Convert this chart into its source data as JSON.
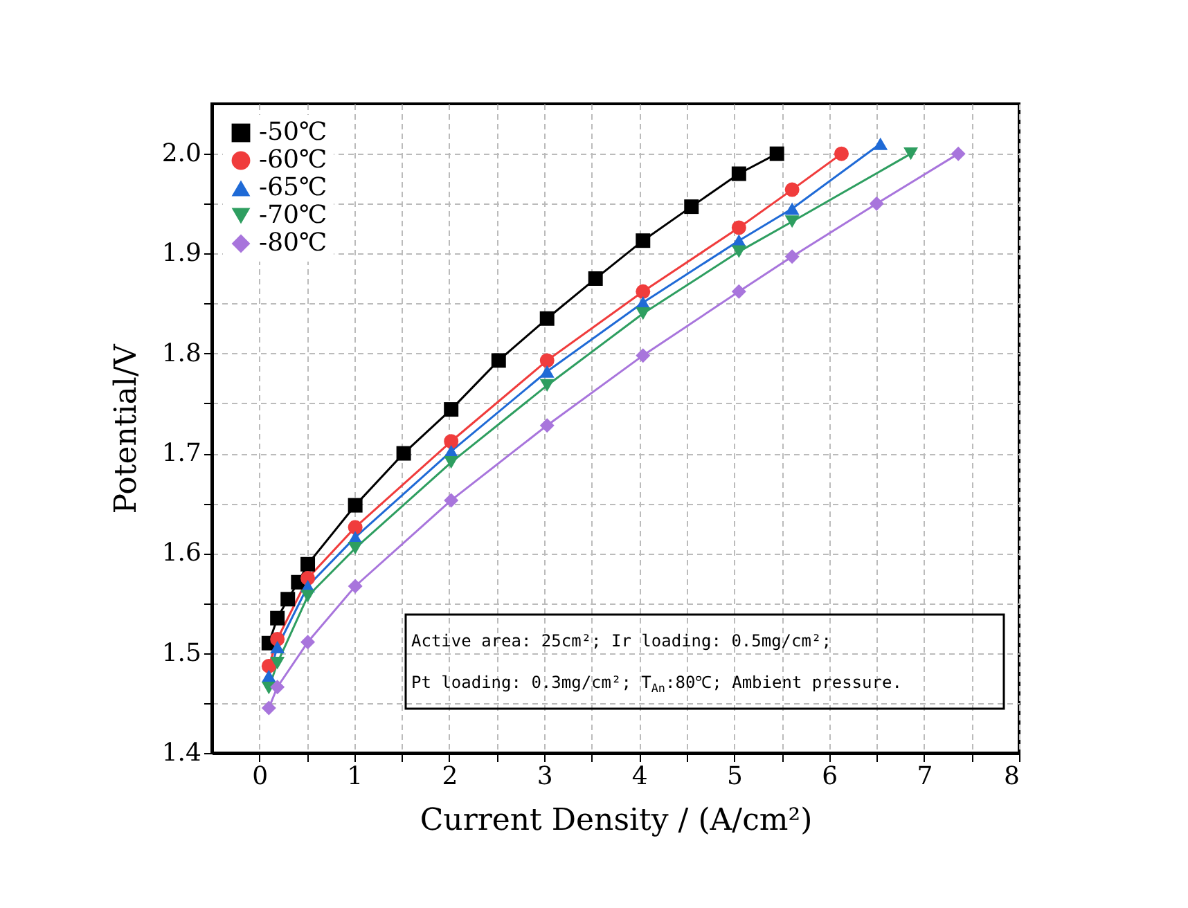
{
  "chart_data": {
    "type": "line",
    "xlabel": "Current Density / (A/cm²)",
    "ylabel": "Potential/V",
    "xlim": [
      -0.5,
      8
    ],
    "ylim": [
      1.4,
      2.05
    ],
    "xticks": [
      0,
      {
        "value": 0.5,
        "label": null
      },
      1,
      {
        "value": 1.5,
        "label": null
      },
      2,
      {
        "value": 2.5,
        "label": null
      },
      3,
      {
        "value": 3.5,
        "label": null
      },
      4,
      {
        "value": 4.5,
        "label": null
      },
      5,
      {
        "value": 5.5,
        "label": null
      },
      6,
      {
        "value": 6.5,
        "label": null
      },
      7,
      {
        "value": 7.5,
        "label": null
      },
      8
    ],
    "yticks": [
      1.4,
      {
        "value": 1.45,
        "label": null
      },
      1.5,
      {
        "value": 1.55,
        "label": null
      },
      1.6,
      {
        "value": 1.65,
        "label": null
      },
      1.7,
      {
        "value": 1.75,
        "label": null
      },
      1.8,
      {
        "value": 1.85,
        "label": null
      },
      1.9,
      {
        "value": 1.95,
        "label": null
      },
      {
        "value": 2.0,
        "label": "2.0"
      }
    ],
    "grid": true,
    "legend": "top left",
    "line_style": "solid",
    "annotations": [
      "Active area: 25cm²; Ir loading: 0.5mg/cm²;",
      "Pt loading: 0.3mg/cm²; T$_{An}$:80℃; Ambient pressure."
    ],
    "series": [
      {
        "name": "-50℃",
        "color": "#000000",
        "marker": "square",
        "x": [
          0.1,
          0.19,
          0.3,
          0.41,
          0.51,
          1.01,
          1.52,
          2.02,
          2.52,
          3.03,
          3.54,
          4.04,
          4.55,
          5.05,
          5.45
        ],
        "values": [
          1.51,
          1.535,
          1.554,
          1.571,
          1.589,
          1.648,
          1.7,
          1.744,
          1.793,
          1.835,
          1.875,
          1.913,
          1.947,
          1.98,
          2.0
        ]
      },
      {
        "name": "-60℃",
        "color": "#f03c3c",
        "marker": "circle",
        "x": [
          0.1,
          0.19,
          0.51,
          1.01,
          2.02,
          3.03,
          4.04,
          5.05,
          5.61,
          6.13
        ],
        "values": [
          1.487,
          1.514,
          1.575,
          1.626,
          1.712,
          1.793,
          1.862,
          1.926,
          1.964,
          2.0
        ]
      },
      {
        "name": "-65℃",
        "color": "#1f6ad6",
        "marker": "triangle",
        "x": [
          0.1,
          0.19,
          0.51,
          1.01,
          2.02,
          3.03,
          4.04,
          5.05,
          5.61,
          6.54
        ],
        "values": [
          1.477,
          1.506,
          1.567,
          1.616,
          1.702,
          1.782,
          1.851,
          1.913,
          1.945,
          2.01
        ]
      },
      {
        "name": "-70℃",
        "color": "#2e9e60",
        "marker": "triangle-down",
        "x": [
          0.1,
          0.19,
          0.51,
          1.01,
          2.02,
          3.03,
          4.04,
          5.05,
          5.61,
          6.86
        ],
        "values": [
          1.465,
          1.49,
          1.557,
          1.605,
          1.691,
          1.768,
          1.84,
          1.902,
          1.932,
          2.0
        ]
      },
      {
        "name": "-80℃",
        "color": "#a875dc",
        "marker": "diamond",
        "x": [
          0.1,
          0.19,
          0.51,
          1.01,
          2.02,
          3.03,
          4.04,
          5.05,
          5.61,
          6.5,
          7.36
        ],
        "values": [
          1.445,
          1.466,
          1.511,
          1.567,
          1.653,
          1.728,
          1.798,
          1.862,
          1.897,
          1.95,
          2.0
        ]
      }
    ]
  }
}
